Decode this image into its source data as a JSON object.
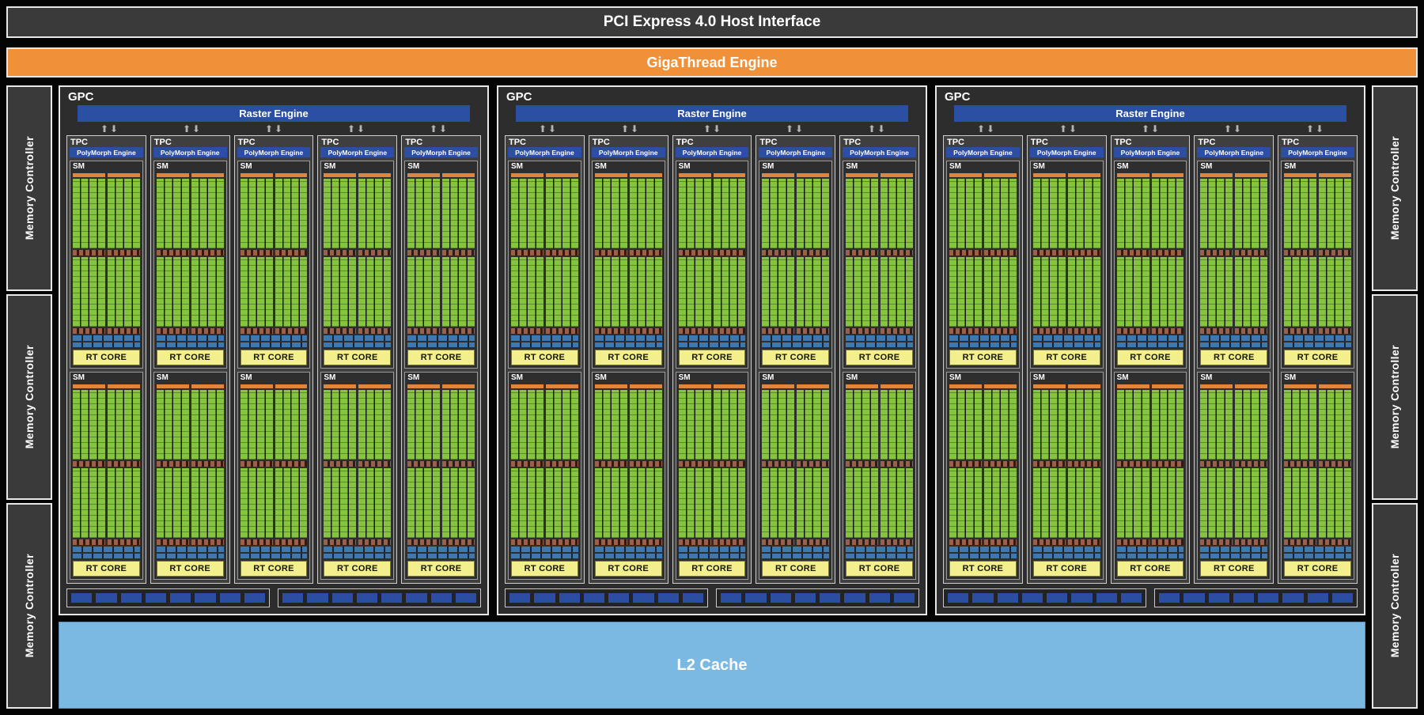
{
  "pci": {
    "label": "PCI Express 4.0 Host Interface"
  },
  "gigathread": {
    "label": "GigaThread Engine"
  },
  "memory_controller": {
    "label": "Memory Controller",
    "left_count": 3,
    "right_count": 3
  },
  "l2_cache": {
    "label": "L2 Cache"
  },
  "gpc": {
    "count": 3,
    "label": "GPC",
    "raster_label": "Raster Engine",
    "tpc_count": 5,
    "tpc_label": "TPC",
    "polymorph_label": "PolyMorph Engine",
    "sm_per_tpc": 2,
    "sm_label": "SM",
    "sm_partitions": 2,
    "rt_core_label": "RT CORE",
    "bottom_groups": 2,
    "blocks_per_group": 8
  },
  "icons": {
    "up_arrow": "⬆",
    "down_arrow": "⬇"
  },
  "colors": {
    "orange": "#f0913a",
    "engine_blue": "#2b4fa3",
    "core_green": "#85c43e",
    "rt_yellow": "#f2ef8c",
    "l2_blue": "#7cb9e2",
    "block_gray": "#3a3a3a",
    "sched_orange": "#e0863c",
    "unit_brown": "#9a604a",
    "strip_blue": "#3e78b0",
    "rop_blue": "#2b4da2",
    "border_light": "#e8e8e8"
  }
}
